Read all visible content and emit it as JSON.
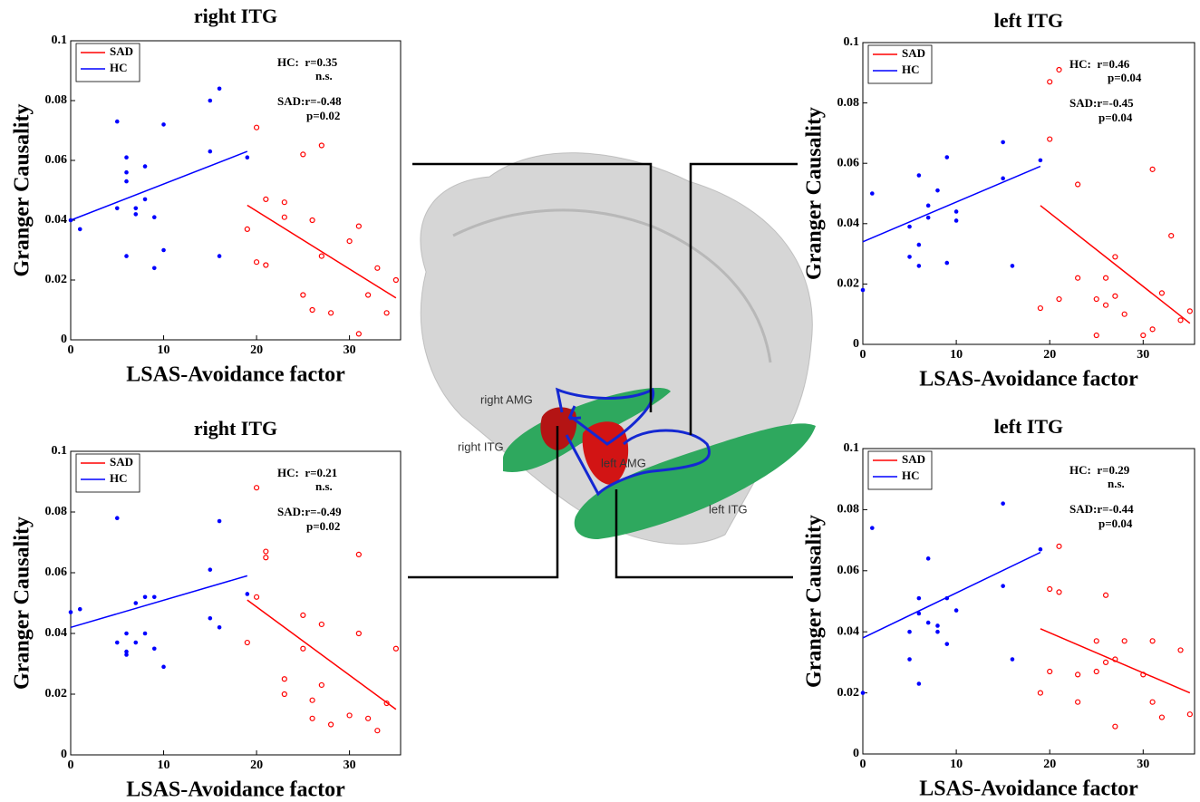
{
  "chart_data": [
    {
      "type": "scatter",
      "title": "right ITG",
      "x_label": "LSAS-Avoidance factor",
      "y_label": "Granger Causality",
      "xlim": [
        0,
        35.5
      ],
      "ylim": [
        0,
        0.1
      ],
      "xticks": [
        0,
        10,
        20,
        30
      ],
      "yticks": [
        0,
        0.02,
        0.04,
        0.06,
        0.08,
        0.1
      ],
      "annotations": [
        "HC:  r=0.35",
        "n.s.",
        "SAD:r=-0.48",
        "p=0.02"
      ],
      "series": [
        {
          "name": "SAD",
          "color": "#ff0000",
          "x": [
            19,
            20,
            20,
            21,
            21,
            23,
            23,
            25,
            25,
            26,
            26,
            27,
            27,
            28,
            30,
            31,
            31,
            32,
            33,
            34,
            35
          ],
          "values": [
            0.037,
            0.071,
            0.026,
            0.047,
            0.025,
            0.046,
            0.041,
            0.062,
            0.015,
            0.04,
            0.01,
            0.065,
            0.028,
            0.009,
            0.033,
            0.038,
            0.002,
            0.015,
            0.024,
            0.009,
            0.02
          ],
          "fit_x": [
            19,
            35
          ],
          "fit_values": [
            0.045,
            0.014
          ]
        },
        {
          "name": "HC",
          "color": "#0000ff",
          "x": [
            0,
            1,
            5,
            5,
            6,
            6,
            6,
            6,
            7,
            7,
            8,
            8,
            9,
            9,
            10,
            10,
            15,
            15,
            16,
            16,
            19
          ],
          "values": [
            0.04,
            0.037,
            0.073,
            0.044,
            0.061,
            0.056,
            0.053,
            0.028,
            0.044,
            0.042,
            0.058,
            0.047,
            0.041,
            0.024,
            0.072,
            0.03,
            0.08,
            0.063,
            0.084,
            0.028,
            0.061
          ],
          "fit_x": [
            0,
            19
          ],
          "fit_values": [
            0.04,
            0.063
          ]
        }
      ]
    },
    {
      "type": "scatter",
      "title": "left ITG",
      "x_label": "LSAS-Avoidance factor",
      "y_label": "Granger Causality",
      "xlim": [
        0,
        35.5
      ],
      "ylim": [
        0,
        0.1
      ],
      "xticks": [
        0,
        10,
        20,
        30
      ],
      "yticks": [
        0,
        0.02,
        0.04,
        0.06,
        0.08,
        0.1
      ],
      "annotations": [
        "HC:  r=0.46",
        "p=0.04",
        "SAD:r=-0.45",
        "p=0.04"
      ],
      "series": [
        {
          "name": "SAD",
          "color": "#ff0000",
          "x": [
            19,
            20,
            20,
            21,
            21,
            23,
            23,
            25,
            25,
            26,
            26,
            27,
            27,
            28,
            30,
            31,
            31,
            32,
            33,
            34,
            35
          ],
          "values": [
            0.012,
            0.087,
            0.068,
            0.091,
            0.015,
            0.053,
            0.022,
            0.015,
            0.003,
            0.022,
            0.013,
            0.029,
            0.016,
            0.01,
            0.003,
            0.058,
            0.005,
            0.017,
            0.036,
            0.008,
            0.011
          ],
          "fit_x": [
            19,
            35
          ],
          "fit_values": [
            0.046,
            0.007
          ]
        },
        {
          "name": "HC",
          "color": "#0000ff",
          "x": [
            0,
            1,
            5,
            5,
            6,
            6,
            6,
            7,
            7,
            8,
            9,
            9,
            10,
            10,
            15,
            15,
            16,
            19
          ],
          "values": [
            0.018,
            0.05,
            0.039,
            0.029,
            0.056,
            0.033,
            0.026,
            0.042,
            0.046,
            0.051,
            0.062,
            0.027,
            0.044,
            0.041,
            0.067,
            0.055,
            0.026,
            0.061
          ],
          "fit_x": [
            0,
            19
          ],
          "fit_values": [
            0.034,
            0.059
          ]
        }
      ]
    },
    {
      "type": "scatter",
      "title": "right ITG",
      "x_label": "LSAS-Avoidance factor",
      "y_label": "Granger Causality",
      "xlim": [
        0,
        35.5
      ],
      "ylim": [
        0,
        0.1
      ],
      "xticks": [
        0,
        10,
        20,
        30
      ],
      "yticks": [
        0,
        0.02,
        0.04,
        0.06,
        0.08,
        0.1
      ],
      "annotations": [
        "HC:  r=0.21",
        "n.s.",
        "SAD:r=-0.49",
        "p=0.02"
      ],
      "series": [
        {
          "name": "SAD",
          "color": "#ff0000",
          "x": [
            19,
            20,
            20,
            21,
            21,
            23,
            23,
            25,
            25,
            26,
            26,
            27,
            27,
            28,
            30,
            31,
            31,
            32,
            33,
            34,
            35
          ],
          "values": [
            0.037,
            0.088,
            0.052,
            0.067,
            0.065,
            0.025,
            0.02,
            0.046,
            0.035,
            0.018,
            0.012,
            0.043,
            0.023,
            0.01,
            0.013,
            0.066,
            0.04,
            0.012,
            0.008,
            0.017,
            0.035
          ],
          "fit_x": [
            19,
            35
          ],
          "fit_values": [
            0.051,
            0.015
          ]
        },
        {
          "name": "HC",
          "color": "#0000ff",
          "x": [
            0,
            1,
            5,
            5,
            6,
            6,
            6,
            7,
            7,
            8,
            8,
            9,
            9,
            10,
            15,
            15,
            16,
            16,
            19
          ],
          "values": [
            0.047,
            0.048,
            0.078,
            0.037,
            0.04,
            0.034,
            0.033,
            0.037,
            0.05,
            0.052,
            0.04,
            0.052,
            0.035,
            0.029,
            0.061,
            0.045,
            0.077,
            0.042,
            0.053
          ],
          "fit_x": [
            0,
            19
          ],
          "fit_values": [
            0.042,
            0.059
          ]
        }
      ]
    },
    {
      "type": "scatter",
      "title": "left ITG",
      "x_label": "LSAS-Avoidance factor",
      "y_label": "Granger Causality",
      "xlim": [
        0,
        35.5
      ],
      "ylim": [
        0,
        0.1
      ],
      "xticks": [
        0,
        10,
        20,
        30
      ],
      "yticks": [
        0,
        0.02,
        0.04,
        0.06,
        0.08,
        0.1
      ],
      "annotations": [
        "HC:  r=0.29",
        "n.s.",
        "SAD:r=-0.44",
        "p=0.04"
      ],
      "series": [
        {
          "name": "SAD",
          "color": "#ff0000",
          "x": [
            19,
            20,
            20,
            21,
            21,
            23,
            23,
            25,
            25,
            26,
            26,
            27,
            27,
            28,
            30,
            31,
            31,
            32,
            34,
            35
          ],
          "values": [
            0.02,
            0.054,
            0.027,
            0.068,
            0.053,
            0.026,
            0.017,
            0.037,
            0.027,
            0.052,
            0.03,
            0.031,
            0.009,
            0.037,
            0.026,
            0.037,
            0.017,
            0.012,
            0.034,
            0.013
          ],
          "fit_x": [
            19,
            35
          ],
          "fit_values": [
            0.041,
            0.02
          ]
        },
        {
          "name": "HC",
          "color": "#0000ff",
          "x": [
            0,
            1,
            5,
            5,
            6,
            6,
            6,
            7,
            7,
            8,
            8,
            9,
            9,
            10,
            15,
            15,
            16,
            19
          ],
          "values": [
            0.02,
            0.074,
            0.04,
            0.031,
            0.051,
            0.046,
            0.023,
            0.064,
            0.043,
            0.042,
            0.04,
            0.051,
            0.036,
            0.047,
            0.082,
            0.055,
            0.031,
            0.067
          ],
          "fit_x": [
            0,
            19
          ],
          "fit_values": [
            0.038,
            0.066
          ]
        }
      ]
    }
  ],
  "brain": {
    "labels": [
      "right AMG",
      "right ITG",
      "left AMG",
      "left ITG"
    ]
  }
}
